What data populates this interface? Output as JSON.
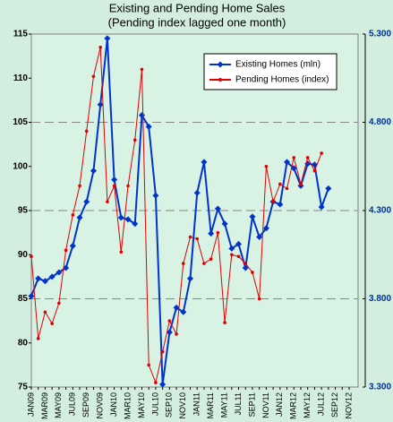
{
  "chart_data": {
    "type": "line",
    "title": "Existing and Pending Home Sales",
    "subtitle": "(Pending index lagged one month)",
    "categories": [
      "JAN09",
      null,
      "MAR09",
      null,
      "MAY09",
      null,
      "JUL09",
      null,
      "SEP09",
      null,
      "NOV09",
      null,
      "JAN10",
      null,
      "MAR10",
      null,
      "MAY10",
      null,
      "JUL10",
      null,
      "SEP10",
      null,
      "NOV10",
      null,
      "JAN11",
      null,
      "MAR11",
      null,
      "MAY11",
      null,
      "JUL11",
      null,
      "SEP11",
      null,
      "NOV11",
      null,
      "JAN12",
      null,
      "MAR12",
      null,
      "MAY12",
      null,
      "JUL12",
      null,
      "SEP12",
      null,
      "NOV12"
    ],
    "series": [
      {
        "name": "Existing Homes (mln)",
        "color": "#0033cc",
        "axis": "y2",
        "marker": "diamond",
        "values": [
          3.815,
          3.915,
          3.9,
          3.925,
          3.95,
          3.975,
          4.1,
          4.26,
          4.35,
          4.525,
          4.9,
          5.275,
          4.475,
          4.26,
          4.25,
          4.225,
          4.84,
          4.775,
          4.385,
          3.315,
          3.61,
          3.75,
          3.725,
          3.915,
          4.4,
          4.575,
          4.17,
          4.31,
          4.225,
          4.085,
          4.11,
          3.975,
          4.265,
          4.15,
          4.2,
          4.35,
          4.335,
          4.575,
          4.54,
          4.44,
          4.565,
          4.56,
          4.32,
          4.425,
          null,
          null,
          null
        ]
      },
      {
        "name": "Pending Homes (index)",
        "color": "#e00000",
        "marker": "dot",
        "values": [
          89.8,
          80.5,
          83.5,
          82.2,
          84.5,
          90.5,
          94.5,
          97.8,
          104,
          110.2,
          113.5,
          96,
          97.8,
          90.3,
          97.8,
          103,
          111,
          77.5,
          75.5,
          79,
          82.5,
          81,
          89,
          92,
          91.8,
          89,
          89.5,
          92.5,
          82.3,
          90,
          89.8,
          89,
          88,
          85,
          100,
          96,
          98,
          97.5,
          101,
          98,
          101,
          99.5,
          101.5,
          null,
          null,
          null,
          null
        ]
      }
    ],
    "ylim": [
      75,
      115
    ],
    "yticks": [
      75,
      80,
      85,
      90,
      95,
      100,
      105,
      110,
      115
    ],
    "y2lim": [
      3.3,
      5.3
    ],
    "y2ticks": [
      {
        "value": 3.3,
        "label": "3.300"
      },
      {
        "value": 3.8,
        "label": "3.800"
      },
      {
        "value": 4.3,
        "label": "4.300"
      },
      {
        "value": 4.8,
        "label": "4.800"
      },
      {
        "value": 5.3,
        "label": "5.300"
      }
    ],
    "grid": true,
    "legend": "upper right"
  }
}
